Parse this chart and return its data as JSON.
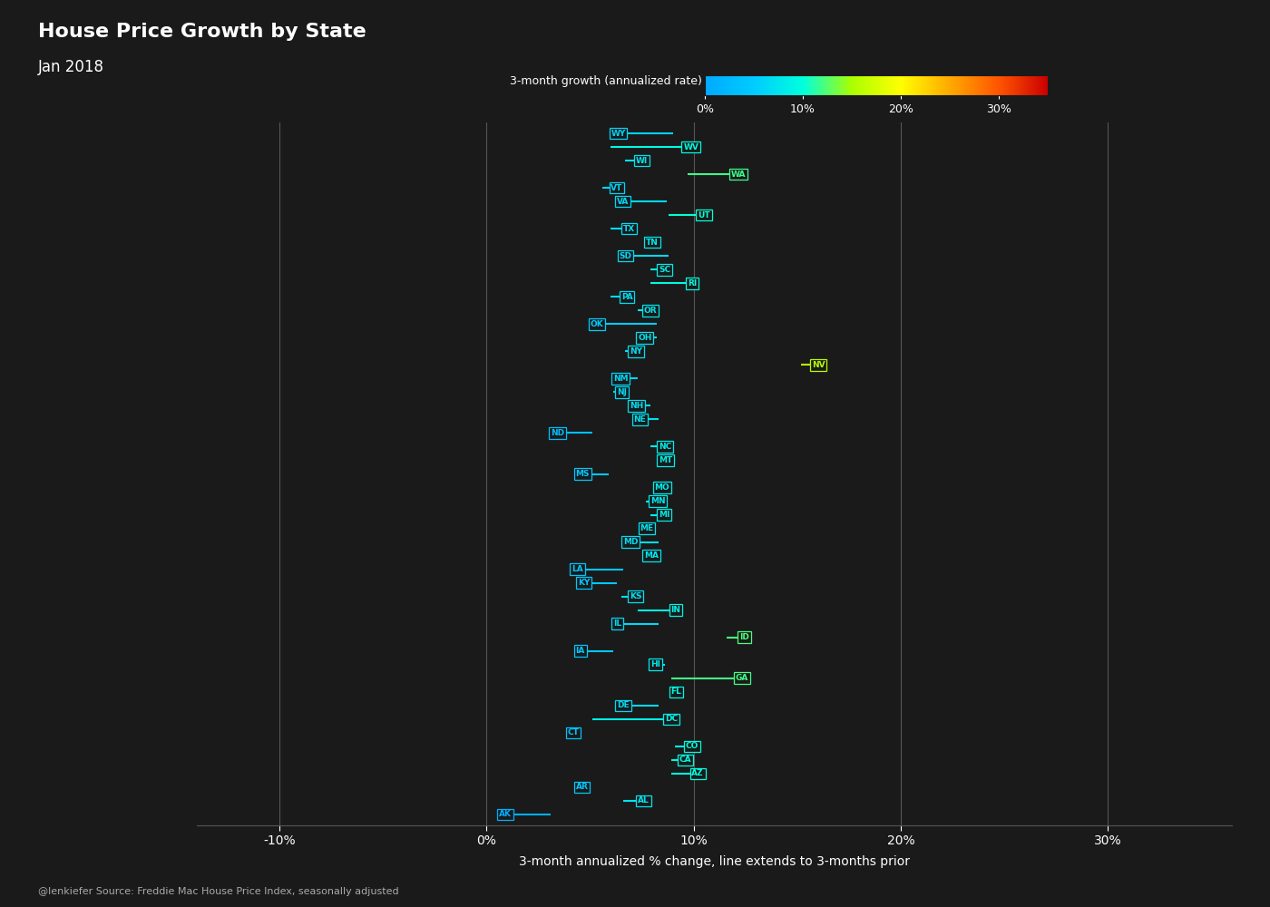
{
  "title": "House Price Growth by State",
  "subtitle": "Jan 2018",
  "xlabel": "3-month annualized % change, line extends to 3-months prior",
  "source": "@lenkiefer Source: Freddie Mac House Price Index, seasonally adjusted",
  "colorbar_label": "3-month growth (annualized rate)",
  "background_color": "#1a1a1a",
  "text_color": "#ffffff",
  "xlim": [
    -0.14,
    0.36
  ],
  "xticks": [
    -0.1,
    0.0,
    0.1,
    0.2,
    0.3
  ],
  "xtick_labels": [
    "-10%",
    "0%",
    "10%",
    "20%",
    "30%"
  ],
  "vmin": 0.0,
  "vmax": 0.35,
  "states": [
    {
      "abbr": "WY",
      "current": 0.06,
      "prior": 0.09,
      "growth3m": 0.06
    },
    {
      "abbr": "WV",
      "current": 0.095,
      "prior": 0.06,
      "growth3m": 0.095
    },
    {
      "abbr": "WI",
      "current": 0.072,
      "prior": 0.067,
      "growth3m": 0.072
    },
    {
      "abbr": "WA",
      "current": 0.118,
      "prior": 0.097,
      "growth3m": 0.118
    },
    {
      "abbr": "VT",
      "current": 0.06,
      "prior": 0.056,
      "growth3m": 0.06
    },
    {
      "abbr": "VA",
      "current": 0.063,
      "prior": 0.087,
      "growth3m": 0.063
    },
    {
      "abbr": "UT",
      "current": 0.102,
      "prior": 0.088,
      "growth3m": 0.102
    },
    {
      "abbr": "TX",
      "current": 0.066,
      "prior": 0.06,
      "growth3m": 0.066
    },
    {
      "abbr": "TN",
      "current": 0.077,
      "prior": 0.082,
      "growth3m": 0.077
    },
    {
      "abbr": "SD",
      "current": 0.064,
      "prior": 0.088,
      "growth3m": 0.064
    },
    {
      "abbr": "SC",
      "current": 0.083,
      "prior": 0.079,
      "growth3m": 0.083
    },
    {
      "abbr": "RI",
      "current": 0.097,
      "prior": 0.079,
      "growth3m": 0.097
    },
    {
      "abbr": "PA",
      "current": 0.065,
      "prior": 0.06,
      "growth3m": 0.065
    },
    {
      "abbr": "OR",
      "current": 0.076,
      "prior": 0.073,
      "growth3m": 0.076
    },
    {
      "abbr": "OK",
      "current": 0.05,
      "prior": 0.082,
      "growth3m": 0.05
    },
    {
      "abbr": "OH",
      "current": 0.073,
      "prior": 0.082,
      "growth3m": 0.073
    },
    {
      "abbr": "NY",
      "current": 0.069,
      "prior": 0.067,
      "growth3m": 0.069
    },
    {
      "abbr": "NV",
      "current": 0.157,
      "prior": 0.152,
      "growth3m": 0.157
    },
    {
      "abbr": "NM",
      "current": 0.061,
      "prior": 0.073,
      "growth3m": 0.061
    },
    {
      "abbr": "NJ",
      "current": 0.063,
      "prior": 0.061,
      "growth3m": 0.063
    },
    {
      "abbr": "NH",
      "current": 0.069,
      "prior": 0.079,
      "growth3m": 0.069
    },
    {
      "abbr": "NE",
      "current": 0.071,
      "prior": 0.083,
      "growth3m": 0.071
    },
    {
      "abbr": "ND",
      "current": 0.031,
      "prior": 0.051,
      "growth3m": 0.031
    },
    {
      "abbr": "NC",
      "current": 0.083,
      "prior": 0.079,
      "growth3m": 0.083
    },
    {
      "abbr": "MT",
      "current": 0.083,
      "prior": 0.091,
      "growth3m": 0.083
    },
    {
      "abbr": "MS",
      "current": 0.043,
      "prior": 0.059,
      "growth3m": 0.043
    },
    {
      "abbr": "MO",
      "current": 0.081,
      "prior": 0.083,
      "growth3m": 0.081
    },
    {
      "abbr": "MN",
      "current": 0.079,
      "prior": 0.077,
      "growth3m": 0.079
    },
    {
      "abbr": "MI",
      "current": 0.083,
      "prior": 0.079,
      "growth3m": 0.083
    },
    {
      "abbr": "ME",
      "current": 0.074,
      "prior": 0.081,
      "growth3m": 0.074
    },
    {
      "abbr": "MD",
      "current": 0.066,
      "prior": 0.083,
      "growth3m": 0.066
    },
    {
      "abbr": "MA",
      "current": 0.076,
      "prior": 0.083,
      "growth3m": 0.076
    },
    {
      "abbr": "LA",
      "current": 0.041,
      "prior": 0.066,
      "growth3m": 0.041
    },
    {
      "abbr": "KY",
      "current": 0.044,
      "prior": 0.063,
      "growth3m": 0.044
    },
    {
      "abbr": "KS",
      "current": 0.069,
      "prior": 0.065,
      "growth3m": 0.069
    },
    {
      "abbr": "IN",
      "current": 0.089,
      "prior": 0.073,
      "growth3m": 0.089
    },
    {
      "abbr": "IL",
      "current": 0.061,
      "prior": 0.083,
      "growth3m": 0.061
    },
    {
      "abbr": "ID",
      "current": 0.122,
      "prior": 0.116,
      "growth3m": 0.122
    },
    {
      "abbr": "IA",
      "current": 0.043,
      "prior": 0.061,
      "growth3m": 0.043
    },
    {
      "abbr": "HI",
      "current": 0.079,
      "prior": 0.086,
      "growth3m": 0.079
    },
    {
      "abbr": "GA",
      "current": 0.12,
      "prior": 0.089,
      "growth3m": 0.12
    },
    {
      "abbr": "FL",
      "current": 0.089,
      "prior": 0.093,
      "growth3m": 0.089
    },
    {
      "abbr": "DE",
      "current": 0.063,
      "prior": 0.083,
      "growth3m": 0.063
    },
    {
      "abbr": "DC",
      "current": 0.086,
      "prior": 0.051,
      "growth3m": 0.086
    },
    {
      "abbr": "CT",
      "current": 0.039,
      "prior": 0.041,
      "growth3m": 0.039
    },
    {
      "abbr": "CO",
      "current": 0.096,
      "prior": 0.091,
      "growth3m": 0.096
    },
    {
      "abbr": "CA",
      "current": 0.093,
      "prior": 0.089,
      "growth3m": 0.093
    },
    {
      "abbr": "AZ",
      "current": 0.099,
      "prior": 0.089,
      "growth3m": 0.099
    },
    {
      "abbr": "AR",
      "current": 0.043,
      "prior": 0.049,
      "growth3m": 0.043
    },
    {
      "abbr": "AL",
      "current": 0.073,
      "prior": 0.066,
      "growth3m": 0.073
    },
    {
      "abbr": "AK",
      "current": 0.006,
      "prior": 0.031,
      "growth3m": 0.006
    }
  ]
}
